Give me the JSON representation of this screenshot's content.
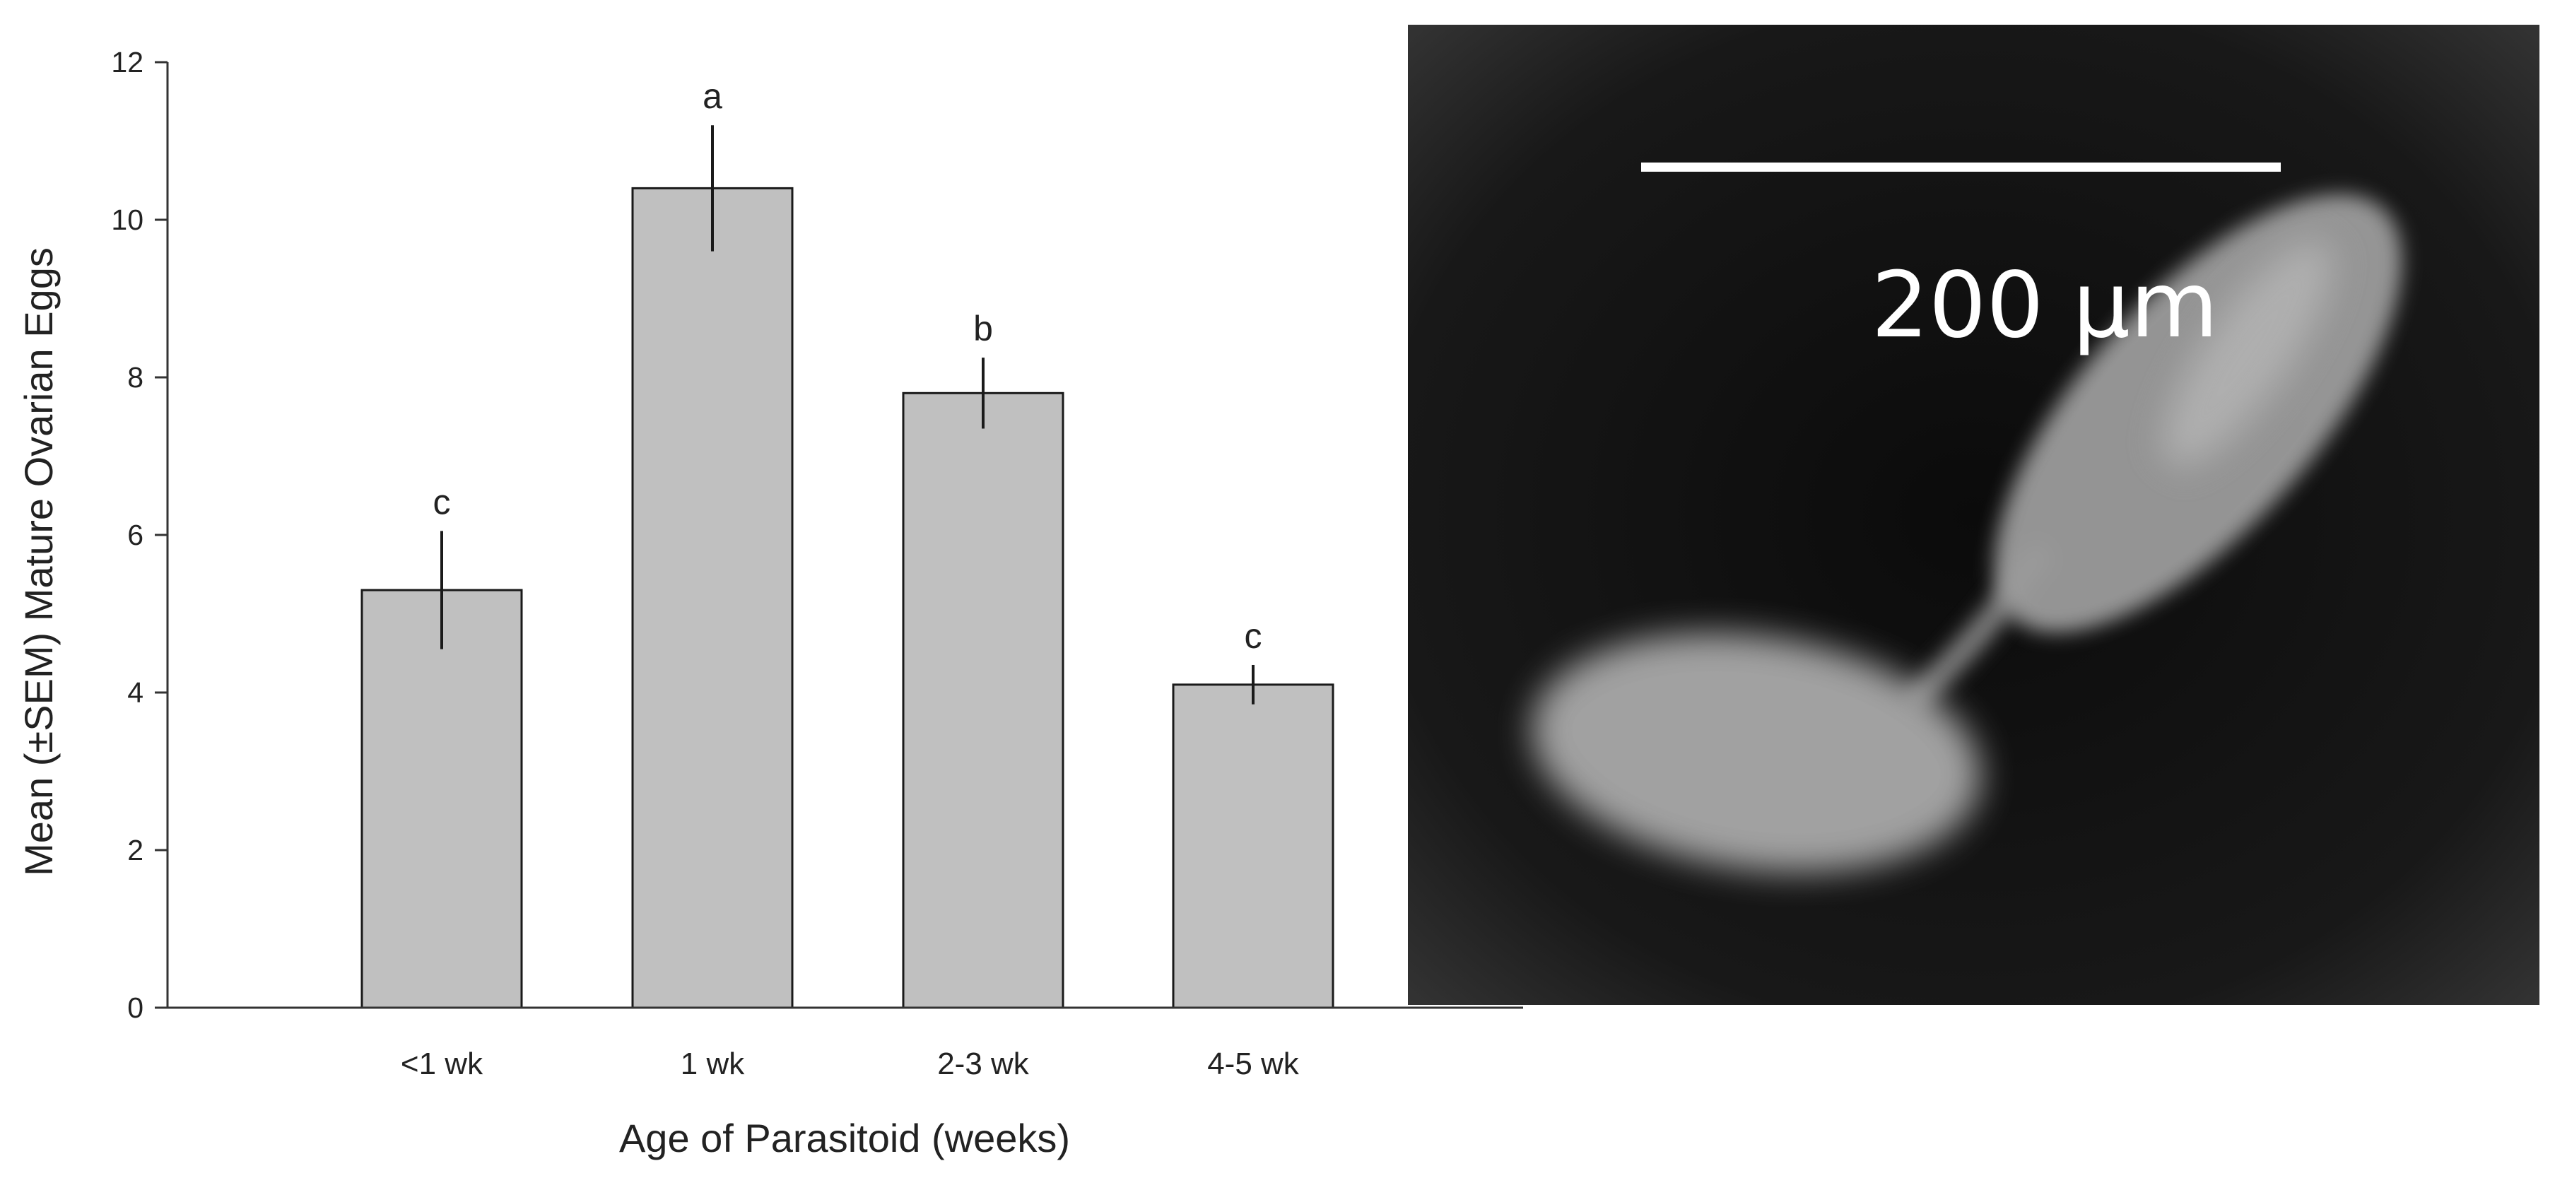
{
  "chart_data": {
    "type": "bar",
    "categories": [
      "<1 wk",
      "1 wk",
      "2-3 wk",
      "4-5 wk"
    ],
    "values": [
      5.3,
      10.4,
      7.8,
      4.1
    ],
    "error": [
      0.75,
      0.8,
      0.45,
      0.25
    ],
    "significance": [
      "c",
      "a",
      "b",
      "c"
    ],
    "xlabel": "Age of Parasitoid (weeks)",
    "ylabel": "Mean (±SEM) Mature Ovarian Eggs",
    "ylim": [
      0,
      12
    ],
    "yticks": [
      0,
      2,
      4,
      6,
      8,
      10,
      12
    ],
    "grid": false,
    "bar_color": "#c0c0c0"
  },
  "micrograph": {
    "scale_bar_label": "200 μm",
    "background_color": "#141414"
  }
}
